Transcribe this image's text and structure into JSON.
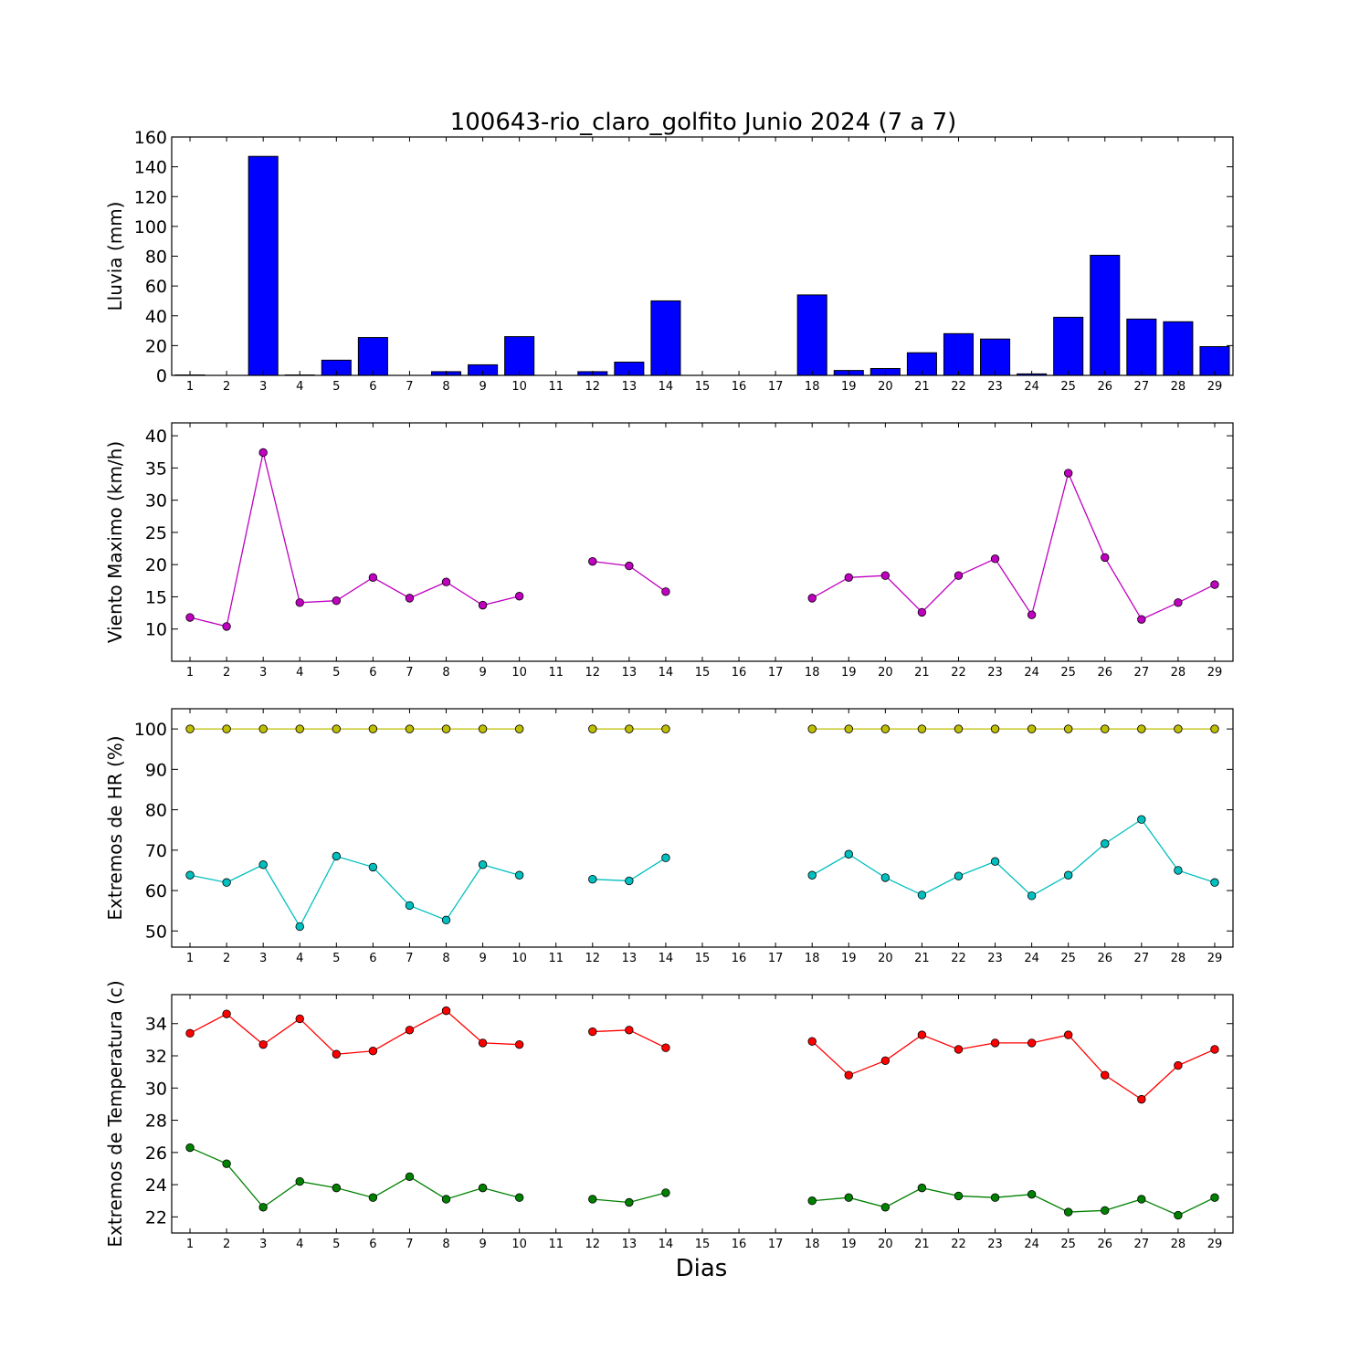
{
  "title": "100643-rio_claro_golfito Junio 2024  (7 a 7)",
  "xlabel": "Dias",
  "colors": {
    "rain_bar": "#0000ff",
    "wind": "#bf00bf",
    "hr_max": "#bfbf00",
    "hr_min": "#00bfbf",
    "temp_max": "#ff0000",
    "temp_min": "#008000"
  },
  "chart_data": [
    {
      "type": "bar",
      "ylabel": "Lluvia (mm)",
      "ylim": [
        0,
        160
      ],
      "yticks": [
        0,
        20,
        40,
        60,
        80,
        100,
        120,
        140,
        160
      ],
      "x": [
        1,
        2,
        3,
        4,
        5,
        6,
        7,
        8,
        9,
        10,
        11,
        12,
        13,
        14,
        15,
        16,
        17,
        18,
        19,
        20,
        21,
        22,
        23,
        24,
        25,
        26,
        27,
        28,
        29
      ],
      "series": [
        {
          "values": [
            0.3,
            0,
            147,
            0.3,
            10.2,
            25.4,
            0,
            2.5,
            7.1,
            26,
            0,
            2.5,
            8.9,
            50,
            0,
            0,
            0,
            54,
            3.3,
            4.6,
            15.2,
            28,
            24.4,
            1,
            39,
            80.6,
            37.8,
            36,
            19.3
          ]
        }
      ]
    },
    {
      "type": "line",
      "ylabel": "Viento Maximo (km/h)",
      "ylim": [
        5,
        42
      ],
      "yticks": [
        10,
        15,
        20,
        25,
        30,
        35,
        40
      ],
      "x": [
        1,
        2,
        3,
        4,
        5,
        6,
        7,
        8,
        9,
        10,
        11,
        12,
        13,
        14,
        15,
        16,
        17,
        18,
        19,
        20,
        21,
        22,
        23,
        24,
        25,
        26,
        27,
        28,
        29
      ],
      "series": [
        {
          "values": [
            11.8,
            10.4,
            37.4,
            14.1,
            14.4,
            18,
            14.8,
            17.3,
            13.7,
            15.1,
            null,
            20.5,
            19.8,
            15.8,
            null,
            null,
            null,
            14.8,
            18,
            18.3,
            12.6,
            18.3,
            20.9,
            12.2,
            34.2,
            21.1,
            11.5,
            14.1,
            16.9
          ]
        }
      ]
    },
    {
      "type": "line",
      "ylabel": "Extremos de HR (%)",
      "ylim": [
        46,
        105
      ],
      "yticks": [
        50,
        60,
        70,
        80,
        90,
        100
      ],
      "x": [
        1,
        2,
        3,
        4,
        5,
        6,
        7,
        8,
        9,
        10,
        11,
        12,
        13,
        14,
        15,
        16,
        17,
        18,
        19,
        20,
        21,
        22,
        23,
        24,
        25,
        26,
        27,
        28,
        29
      ],
      "series": [
        {
          "values": [
            100,
            100,
            100,
            100,
            100,
            100,
            100,
            100,
            100,
            100,
            null,
            100,
            100,
            100,
            null,
            null,
            null,
            100,
            100,
            100,
            100,
            100,
            100,
            100,
            100,
            100,
            100,
            100,
            100
          ]
        },
        {
          "values": [
            63.8,
            62,
            66.4,
            51.1,
            68.5,
            65.8,
            56.3,
            52.7,
            66.4,
            63.8,
            null,
            62.8,
            62.4,
            68.1,
            null,
            null,
            null,
            63.8,
            69,
            63.2,
            58.9,
            63.6,
            67.2,
            58.7,
            63.8,
            71.6,
            77.6,
            65,
            62
          ]
        }
      ]
    },
    {
      "type": "line",
      "ylabel": "Extremos de Temperatura (c)",
      "ylim": [
        21,
        35.8
      ],
      "yticks": [
        22,
        24,
        26,
        28,
        30,
        32,
        34
      ],
      "x": [
        1,
        2,
        3,
        4,
        5,
        6,
        7,
        8,
        9,
        10,
        11,
        12,
        13,
        14,
        15,
        16,
        17,
        18,
        19,
        20,
        21,
        22,
        23,
        24,
        25,
        26,
        27,
        28,
        29
      ],
      "series": [
        {
          "values": [
            33.4,
            34.6,
            32.7,
            34.3,
            32.1,
            32.3,
            33.6,
            34.8,
            32.8,
            32.7,
            null,
            33.5,
            33.6,
            32.5,
            null,
            null,
            null,
            32.9,
            30.8,
            31.7,
            33.3,
            32.4,
            32.8,
            32.8,
            33.3,
            30.8,
            29.3,
            31.4,
            32.4
          ]
        },
        {
          "values": [
            26.3,
            25.3,
            22.6,
            24.2,
            23.8,
            23.2,
            24.5,
            23.1,
            23.8,
            23.2,
            null,
            23.1,
            22.9,
            23.5,
            null,
            null,
            null,
            23,
            23.2,
            22.6,
            23.8,
            23.3,
            23.2,
            23.4,
            22.3,
            22.4,
            23.1,
            22.1,
            23.2
          ]
        }
      ]
    }
  ]
}
